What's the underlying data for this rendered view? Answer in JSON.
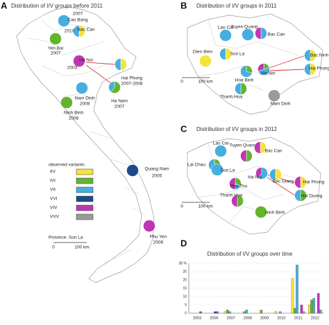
{
  "legend": {
    "title": "observed variants:",
    "variants": [
      {
        "name": "IIV",
        "color": "#f3e43c"
      },
      {
        "name": "IVI",
        "color": "#63b52c"
      },
      {
        "name": "VII",
        "color": "#47aee0"
      },
      {
        "name": "VVI",
        "color": "#1d4b8a"
      },
      {
        "name": "VIV",
        "color": "#bf36b5"
      },
      {
        "name": "VVV",
        "color": "#9a9a9a"
      }
    ],
    "province_note": "Province: Son La"
  },
  "scale": {
    "zero": "0",
    "length": "100 km"
  },
  "panels": [
    {
      "letter": "A",
      "title": "Distribution of I/V groups before 2011",
      "sites": [
        {
          "name": "Cao Bang",
          "year": "2007",
          "shares": [
            0,
            0,
            1,
            0,
            0,
            0
          ]
        },
        {
          "name": "Bac Can",
          "year": "2010",
          "shares": [
            0.5,
            0,
            0.5,
            0,
            0,
            0
          ]
        },
        {
          "name": "Yen Bai",
          "year": "2007",
          "shares": [
            0,
            1,
            0,
            0,
            0,
            0
          ]
        },
        {
          "name": "Ha Noi",
          "year": "2003",
          "shares": [
            0,
            0,
            0,
            0,
            1,
            0
          ]
        },
        {
          "name": "Hai Phong",
          "year": "2007-2008",
          "shares": [
            0.5,
            0,
            0.5,
            0,
            0,
            0
          ]
        },
        {
          "name": "Nam Dinh",
          "year": "2008",
          "shares": [
            0,
            0,
            1,
            0,
            0,
            0
          ]
        },
        {
          "name": "Ha Nam",
          "year": "2007",
          "shares": [
            0,
            0.6,
            0.4,
            0,
            0,
            0
          ]
        },
        {
          "name": "Ninh Binh",
          "year": "2008",
          "shares": [
            0,
            1,
            0,
            0,
            0,
            0
          ]
        },
        {
          "name": "Quang Nam",
          "year": "2005",
          "shares": [
            0,
            0,
            0,
            1,
            0,
            0
          ]
        },
        {
          "name": "Phu Yen",
          "year": "2006",
          "shares": [
            0,
            0,
            0,
            0,
            1,
            0
          ]
        }
      ]
    },
    {
      "letter": "B",
      "title": "Distribution of I/V groups in 2011",
      "sites": [
        {
          "name": "Lao Cai",
          "shares": [
            0,
            0,
            1,
            0,
            0,
            0
          ]
        },
        {
          "name": "Tuyen Quang",
          "shares": [
            0,
            0,
            1,
            0,
            0,
            0
          ]
        },
        {
          "name": "Bac Can",
          "shares": [
            0,
            0,
            0.5,
            0,
            0.5,
            0
          ]
        },
        {
          "name": "Dien Bien",
          "shares": [
            1,
            0,
            0,
            0,
            0,
            0
          ]
        },
        {
          "name": "Son La",
          "shares": [
            0.5,
            0,
            0.5,
            0,
            0,
            0
          ]
        },
        {
          "name": "Ha Noi",
          "shares": [
            0,
            0.2,
            0.5,
            0,
            0.3,
            0
          ]
        },
        {
          "name": "Hoa Binh",
          "shares": [
            0,
            0.3,
            0.7,
            0,
            0,
            0
          ]
        },
        {
          "name": "Bac Ninh",
          "shares": [
            0.5,
            0,
            0.5,
            0,
            0,
            0
          ]
        },
        {
          "name": "Hai Phong",
          "shares": [
            0.5,
            0,
            0.5,
            0,
            0,
            0
          ]
        },
        {
          "name": "Thanh Hoa",
          "shares": [
            0,
            0.5,
            0.5,
            0,
            0,
            0
          ]
        },
        {
          "name": "Nam Dinh",
          "shares": [
            0,
            0,
            0,
            0,
            0,
            1
          ]
        }
      ]
    },
    {
      "letter": "C",
      "title": "Distribution of I/V groups in 2012",
      "sites": [
        {
          "name": "Lai Chau",
          "shares": [
            0,
            0.5,
            0.5,
            0,
            0,
            0
          ]
        },
        {
          "name": "Lao Cai",
          "shares": [
            0,
            0,
            1,
            0,
            0,
            0
          ]
        },
        {
          "name": "Tuyen Quang",
          "shares": [
            0,
            0.5,
            0,
            0,
            0.5,
            0
          ]
        },
        {
          "name": "Bac Can",
          "shares": [
            0.5,
            0,
            0,
            0,
            0.5,
            0
          ]
        },
        {
          "name": "Son La",
          "shares": [
            0,
            0,
            1,
            0,
            0,
            0
          ]
        },
        {
          "name": "Phu Tho",
          "shares": [
            0,
            0.3,
            0.2,
            0,
            0.5,
            0
          ]
        },
        {
          "name": "Ha Noi",
          "shares": [
            0,
            0,
            0.6,
            0,
            0.4,
            0
          ]
        },
        {
          "name": "Bac Giang",
          "shares": [
            0.5,
            0,
            0.5,
            0,
            0,
            0
          ]
        },
        {
          "name": "Hai Phong",
          "shares": [
            0.5,
            0,
            0,
            0,
            0.5,
            0
          ]
        },
        {
          "name": "Hai Duong",
          "shares": [
            0,
            0.5,
            0.5,
            0,
            0,
            0
          ]
        },
        {
          "name": "Thanh Hoa",
          "shares": [
            0,
            0.5,
            0,
            0,
            0.5,
            0
          ]
        },
        {
          "name": "Ninh Binh",
          "shares": [
            0,
            1,
            0,
            0,
            0,
            0
          ]
        }
      ]
    }
  ],
  "chart_data": {
    "type": "bar",
    "letter": "D",
    "title": "Distribution of I/V groups over time",
    "categories": [
      "2003",
      "2006",
      "2007",
      "2008",
      "2009",
      "2010",
      "2011",
      "2012"
    ],
    "series": [
      {
        "name": "IIV",
        "color": "#f3e43c",
        "values": [
          0,
          0,
          1,
          0,
          0,
          1,
          21,
          5
        ]
      },
      {
        "name": "IVI",
        "color": "#63b52c",
        "values": [
          0,
          0,
          2,
          1,
          2,
          0,
          3,
          8
        ]
      },
      {
        "name": "VII",
        "color": "#47aee0",
        "values": [
          0,
          0,
          1,
          2,
          0,
          1,
          29,
          9
        ]
      },
      {
        "name": "VVI",
        "color": "#1d4b8a",
        "values": [
          0,
          1,
          0,
          0,
          0,
          0,
          0,
          0
        ]
      },
      {
        "name": "VIV",
        "color": "#bf36b5",
        "values": [
          1,
          1,
          0,
          0,
          0,
          0,
          5,
          12
        ]
      },
      {
        "name": "VVV",
        "color": "#9a9a9a",
        "values": [
          0,
          0,
          0,
          0,
          0,
          0,
          1,
          2
        ]
      }
    ],
    "ylim": [
      0,
      30
    ],
    "yticks": [
      0,
      5,
      10,
      15,
      20,
      25,
      {
        "value": 30,
        "label": "30 %"
      }
    ],
    "grid": true
  }
}
